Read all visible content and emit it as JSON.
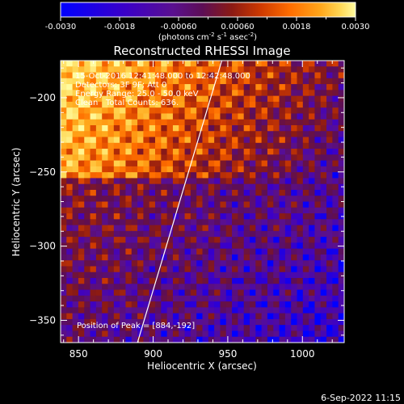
{
  "chart_data": {
    "type": "heatmap",
    "title": "Reconstructed RHESSI Image",
    "xlabel": "Heliocentric X (arcsec)",
    "ylabel": "Heliocentric Y (arcsec)",
    "xlim": [
      838,
      1028
    ],
    "ylim": [
      -365,
      -175
    ],
    "x_ticks": [
      850,
      900,
      950,
      1000
    ],
    "y_ticks": [
      -200,
      -250,
      -300,
      -350
    ],
    "colorbar": {
      "range": [
        -0.003,
        0.003
      ],
      "tick_labels": [
        "-0.0030",
        "-0.0018",
        "-0.00060",
        "0.00060",
        "0.0018",
        "0.0030"
      ],
      "unit_label_parts": [
        "(photons cm",
        "-2",
        " s",
        "-1",
        " asec",
        "-2",
        ")"
      ]
    },
    "info_lines": [
      "15-Oct-2016 12:41:48.000 to 12:42:48.000",
      "Detectors: 3F 9F; Att 0",
      "Energy Range: 25.0 - 50.0 keV",
      "Clean   Total Counts: 636."
    ],
    "peak_label": "Position of Peak = [884,-192]",
    "limb_line": [
      [
        889.5,
        -365
      ],
      [
        946,
        -175
      ]
    ],
    "color_scale": [
      "#0000ff",
      "#3b00c8",
      "#5a1090",
      "#5c0e56",
      "#8b1a14",
      "#cf3a00",
      "#ff6e00",
      "#ffa61a",
      "#ffd856",
      "#fffca0"
    ],
    "grid": {
      "cols": 48,
      "rows": 48,
      "pattern": "mottled ring-like structure, bright top-left fading to dark blue bottom-right"
    }
  },
  "footer": {
    "timestamp": "6-Sep-2022 11:15"
  }
}
